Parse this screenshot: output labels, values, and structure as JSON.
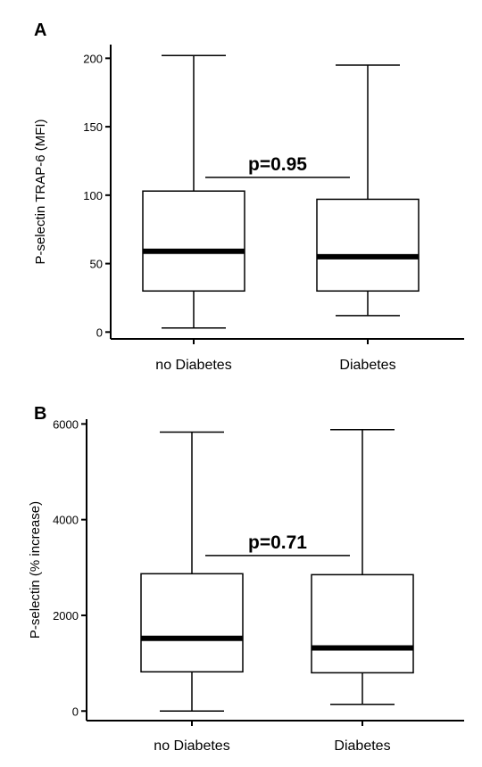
{
  "chart_data": [
    {
      "panel": "A",
      "type": "boxplot",
      "ylabel": "P-selectin TRAP-6 (MFI)",
      "ylim": [
        -5,
        210
      ],
      "yticks": [
        0,
        50,
        100,
        150,
        200
      ],
      "categories": [
        "no Diabetes",
        "Diabetes"
      ],
      "boxes": [
        {
          "category": "no Diabetes",
          "min": 3,
          "q1": 30,
          "median": 59,
          "q3": 103,
          "max": 202
        },
        {
          "category": "Diabetes",
          "min": 12,
          "q1": 30,
          "median": 55,
          "q3": 97,
          "max": 195
        }
      ],
      "annotation": {
        "text": "p=0.95",
        "y": 113
      }
    },
    {
      "panel": "B",
      "type": "boxplot",
      "ylabel": "P-selectin (% increase)",
      "ylim": [
        -200,
        6100
      ],
      "yticks": [
        0,
        2000,
        4000,
        6000
      ],
      "categories": [
        "no Diabetes",
        "Diabetes"
      ],
      "boxes": [
        {
          "category": "no Diabetes",
          "min": 0,
          "q1": 820,
          "median": 1520,
          "q3": 2870,
          "max": 5830
        },
        {
          "category": "Diabetes",
          "min": 140,
          "q1": 800,
          "median": 1320,
          "q3": 2850,
          "max": 5880
        }
      ],
      "annotation": {
        "text": "p=0.71",
        "y": 3250
      }
    }
  ]
}
